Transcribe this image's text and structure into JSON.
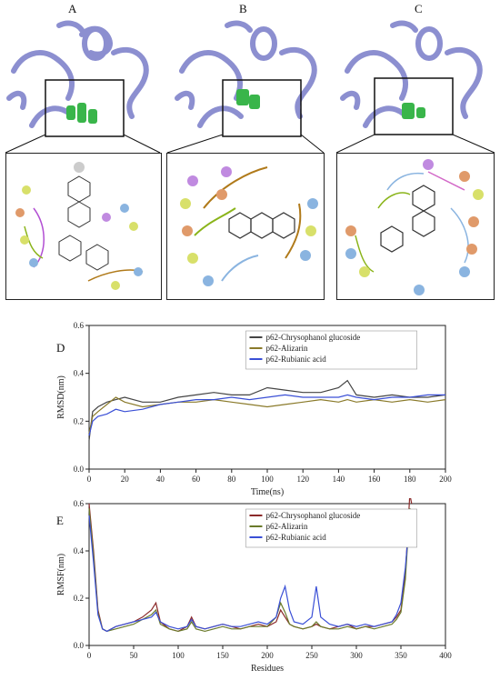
{
  "panels": {
    "a": "A",
    "b": "B",
    "c": "C",
    "d": "D",
    "e": "E"
  },
  "colors": {
    "protein": "#8c8fd0",
    "ligand": "#39b54a",
    "series1": "#444444",
    "series2": "#8a7a2a",
    "series3": "#3a4fd6"
  },
  "chart_data": [
    {
      "type": "line",
      "panel": "D",
      "xlabel": "Time(ns)",
      "ylabel": "RMSD(nm)",
      "xlim": [
        0,
        200
      ],
      "ylim": [
        0.0,
        0.6
      ],
      "x_ticks": [
        "0",
        "20",
        "40",
        "60",
        "80",
        "100",
        "120",
        "140",
        "160",
        "180",
        "200"
      ],
      "y_ticks": [
        "0.0",
        "0.2",
        "0.4",
        "0.6"
      ],
      "legend_position": "top-right",
      "x": [
        0,
        2,
        5,
        10,
        15,
        20,
        30,
        40,
        50,
        60,
        70,
        80,
        90,
        100,
        110,
        120,
        130,
        140,
        145,
        150,
        160,
        170,
        180,
        190,
        200
      ],
      "series": [
        {
          "name": "p62-Chrysophanol glucoside",
          "color": "#444444",
          "values": [
            0.12,
            0.24,
            0.26,
            0.28,
            0.29,
            0.3,
            0.28,
            0.28,
            0.3,
            0.31,
            0.32,
            0.31,
            0.31,
            0.34,
            0.33,
            0.32,
            0.32,
            0.34,
            0.37,
            0.31,
            0.3,
            0.31,
            0.3,
            0.3,
            0.31
          ]
        },
        {
          "name": "p62-Alizarin",
          "color": "#8a7a2a",
          "values": [
            0.15,
            0.22,
            0.24,
            0.27,
            0.3,
            0.28,
            0.26,
            0.27,
            0.28,
            0.28,
            0.29,
            0.28,
            0.27,
            0.26,
            0.27,
            0.28,
            0.29,
            0.28,
            0.29,
            0.28,
            0.29,
            0.28,
            0.29,
            0.28,
            0.29
          ]
        },
        {
          "name": "p62-Rubianic acid",
          "color": "#3a4fd6",
          "values": [
            0.14,
            0.2,
            0.22,
            0.23,
            0.25,
            0.24,
            0.25,
            0.27,
            0.28,
            0.29,
            0.29,
            0.3,
            0.29,
            0.3,
            0.31,
            0.3,
            0.3,
            0.3,
            0.31,
            0.3,
            0.29,
            0.3,
            0.3,
            0.31,
            0.31
          ]
        }
      ]
    },
    {
      "type": "line",
      "panel": "E",
      "xlabel": "Residues",
      "ylabel": "RMSF(nm)",
      "xlim": [
        0,
        400
      ],
      "ylim": [
        0.0,
        0.6
      ],
      "x_ticks": [
        "0",
        "50",
        "100",
        "150",
        "200",
        "250",
        "300",
        "350",
        "400"
      ],
      "y_ticks": [
        "0.0",
        "0.2",
        "0.4",
        "0.6"
      ],
      "legend_position": "top-right",
      "x": [
        0,
        5,
        10,
        15,
        20,
        30,
        40,
        50,
        60,
        70,
        75,
        80,
        90,
        100,
        110,
        115,
        120,
        130,
        140,
        150,
        160,
        170,
        180,
        190,
        200,
        210,
        215,
        220,
        225,
        230,
        240,
        250,
        255,
        260,
        270,
        280,
        290,
        300,
        310,
        320,
        330,
        340,
        345,
        350,
        355,
        360,
        362
      ],
      "series": [
        {
          "name": "p62-Chrysophanol glucoside",
          "color": "#8b2a2a",
          "values": [
            0.6,
            0.4,
            0.15,
            0.07,
            0.06,
            0.08,
            0.09,
            0.1,
            0.12,
            0.15,
            0.18,
            0.1,
            0.07,
            0.06,
            0.08,
            0.12,
            0.08,
            0.07,
            0.08,
            0.09,
            0.08,
            0.07,
            0.08,
            0.09,
            0.08,
            0.1,
            0.15,
            0.12,
            0.09,
            0.08,
            0.07,
            0.08,
            0.09,
            0.08,
            0.07,
            0.08,
            0.09,
            0.07,
            0.08,
            0.08,
            0.09,
            0.1,
            0.12,
            0.15,
            0.3,
            0.64,
            0.6
          ]
        },
        {
          "name": "p62-Alizarin",
          "color": "#6a7a2a",
          "values": [
            0.58,
            0.38,
            0.14,
            0.07,
            0.06,
            0.07,
            0.08,
            0.09,
            0.11,
            0.13,
            0.15,
            0.09,
            0.07,
            0.06,
            0.07,
            0.1,
            0.07,
            0.06,
            0.07,
            0.08,
            0.07,
            0.07,
            0.08,
            0.08,
            0.08,
            0.12,
            0.18,
            0.14,
            0.09,
            0.08,
            0.07,
            0.08,
            0.1,
            0.08,
            0.07,
            0.07,
            0.08,
            0.07,
            0.08,
            0.07,
            0.08,
            0.09,
            0.11,
            0.14,
            0.28,
            0.58,
            0.55
          ]
        },
        {
          "name": "p62-Rubianic acid",
          "color": "#3a4fd6",
          "values": [
            0.55,
            0.35,
            0.13,
            0.07,
            0.06,
            0.08,
            0.09,
            0.1,
            0.11,
            0.12,
            0.14,
            0.1,
            0.08,
            0.07,
            0.08,
            0.11,
            0.08,
            0.07,
            0.08,
            0.09,
            0.08,
            0.08,
            0.09,
            0.1,
            0.09,
            0.12,
            0.2,
            0.25,
            0.15,
            0.1,
            0.09,
            0.12,
            0.25,
            0.12,
            0.09,
            0.08,
            0.09,
            0.08,
            0.09,
            0.08,
            0.09,
            0.1,
            0.13,
            0.18,
            0.33,
            0.55,
            0.52
          ]
        }
      ]
    }
  ]
}
